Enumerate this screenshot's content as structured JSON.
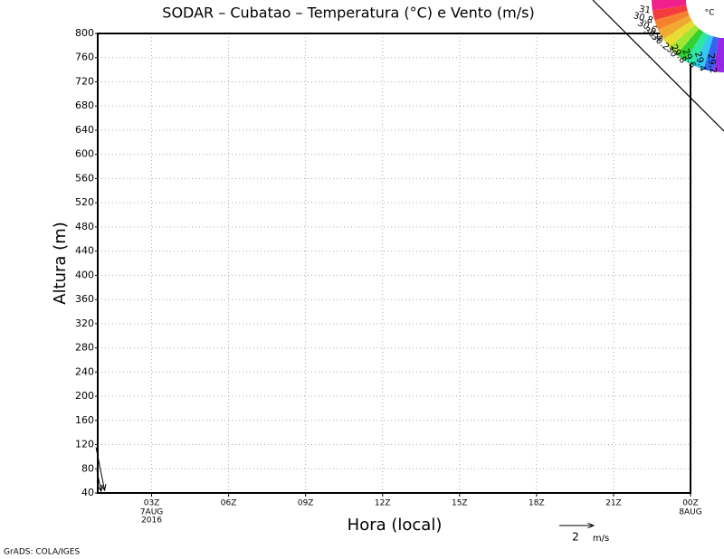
{
  "chart_data": {
    "type": "vector",
    "title": "SODAR – Cubatao – Temperatura (°C) e Vento (m/s)",
    "ylabel": "Altura (m)",
    "xlabel": "Hora (local)",
    "ylim": [
      40,
      800
    ],
    "yticks": [
      40,
      80,
      120,
      160,
      200,
      240,
      280,
      320,
      360,
      400,
      440,
      480,
      520,
      560,
      600,
      640,
      680,
      720,
      760,
      800
    ],
    "xlim": [
      0.9,
      24
    ],
    "xticks": [
      {
        "value": 3,
        "label": "03Z"
      },
      {
        "value": 6,
        "label": "06Z"
      },
      {
        "value": 9,
        "label": "09Z"
      },
      {
        "value": 12,
        "label": "12Z"
      },
      {
        "value": 15,
        "label": "15Z"
      },
      {
        "value": 18,
        "label": "18Z"
      },
      {
        "value": 21,
        "label": "21Z"
      },
      {
        "value": 24,
        "label": "00Z"
      }
    ],
    "xtick_sublabels": [
      {
        "value": 3,
        "lines": [
          "7AUG",
          "2016"
        ]
      },
      {
        "value": 24,
        "lines": [
          "8AUG"
        ]
      }
    ],
    "grid": true,
    "vectors": {
      "x": [
        1.0,
        0.95
      ],
      "heights": [
        80,
        60
      ],
      "u": [
        0.5,
        0.25
      ],
      "v": [
        -2.5,
        -1.2
      ],
      "color": "#000000"
    },
    "reference_vector": {
      "value": 2,
      "unit": "m/s"
    },
    "colorbar": {
      "unit": "°C",
      "colors": [
        "#f0208c",
        "#f53c3c",
        "#f5822d",
        "#f0aa32",
        "#e6dc32",
        "#a0e632",
        "#32d232",
        "#2de6a0",
        "#32c8f0",
        "#3264f0",
        "#9628e6"
      ],
      "levels": [
        31,
        30.8,
        30.6,
        30.4,
        30.2,
        30,
        29.8,
        29.6,
        29.4,
        29.2
      ]
    },
    "footer": "GrADS: COLA/IGES"
  }
}
